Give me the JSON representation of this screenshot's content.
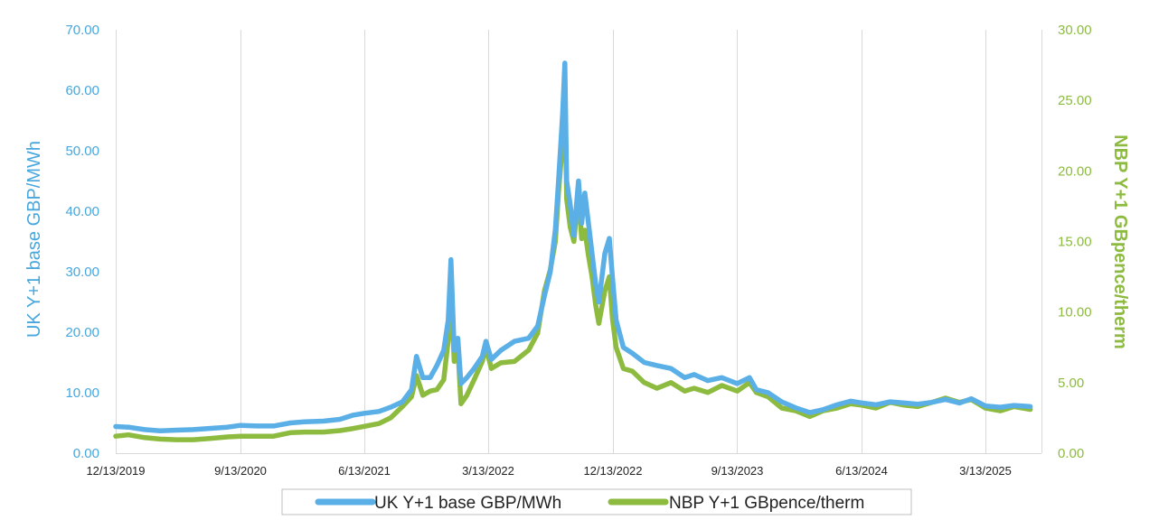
{
  "chart_data": {
    "type": "line",
    "title": "",
    "xlabel": "",
    "x_ticks": [
      "12/13/2019",
      "9/13/2020",
      "6/13/2021",
      "3/13/2022",
      "12/13/2022",
      "9/13/2023",
      "6/13/2024",
      "3/13/2025"
    ],
    "x_range": [
      "2019-12-13",
      "2025-06-20"
    ],
    "y_left": {
      "label": "UK Y+1 base GBP/MWh",
      "range": [
        0,
        70
      ],
      "ticks": [
        "0.00",
        "10.00",
        "20.00",
        "30.00",
        "40.00",
        "50.00",
        "60.00",
        "70.00"
      ]
    },
    "y_right": {
      "label": "NBP Y+1 GBpence/therm",
      "range": [
        0,
        30
      ],
      "ticks": [
        "0.00",
        "5.00",
        "10.00",
        "15.00",
        "20.00",
        "25.00",
        "30.00"
      ]
    },
    "grid": "vertical",
    "legend_position": "bottom",
    "series": [
      {
        "name": "UK Y+1 base GBP/MWh",
        "axis": "left",
        "color": "#5aafe6",
        "points": [
          [
            "2019-12-13",
            4.4
          ],
          [
            "2020-01-10",
            4.3
          ],
          [
            "2020-02-15",
            3.9
          ],
          [
            "2020-03-20",
            3.7
          ],
          [
            "2020-04-25",
            3.8
          ],
          [
            "2020-06-01",
            3.9
          ],
          [
            "2020-07-10",
            4.1
          ],
          [
            "2020-08-15",
            4.3
          ],
          [
            "2020-09-13",
            4.6
          ],
          [
            "2020-10-20",
            4.5
          ],
          [
            "2020-11-25",
            4.5
          ],
          [
            "2021-01-01",
            5.0
          ],
          [
            "2021-02-01",
            5.2
          ],
          [
            "2021-03-15",
            5.3
          ],
          [
            "2021-04-20",
            5.6
          ],
          [
            "2021-05-20",
            6.3
          ],
          [
            "2021-06-13",
            6.6
          ],
          [
            "2021-07-15",
            6.9
          ],
          [
            "2021-08-10",
            7.6
          ],
          [
            "2021-09-05",
            8.5
          ],
          [
            "2021-09-25",
            10.5
          ],
          [
            "2021-10-06",
            16.0
          ],
          [
            "2021-10-20",
            12.5
          ],
          [
            "2021-11-05",
            12.5
          ],
          [
            "2021-11-20",
            14.5
          ],
          [
            "2021-12-05",
            17.0
          ],
          [
            "2021-12-15",
            22.0
          ],
          [
            "2021-12-21",
            32.0
          ],
          [
            "2021-12-28",
            17.0
          ],
          [
            "2022-01-05",
            19.0
          ],
          [
            "2022-01-12",
            11.5
          ],
          [
            "2022-01-25",
            12.5
          ],
          [
            "2022-02-10",
            14.0
          ],
          [
            "2022-02-28",
            16.0
          ],
          [
            "2022-03-08",
            18.5
          ],
          [
            "2022-03-20",
            15.5
          ],
          [
            "2022-04-10",
            17.0
          ],
          [
            "2022-05-10",
            18.5
          ],
          [
            "2022-06-10",
            19.0
          ],
          [
            "2022-06-30",
            21.0
          ],
          [
            "2022-07-15",
            26.0
          ],
          [
            "2022-07-28",
            30.0
          ],
          [
            "2022-08-08",
            37.0
          ],
          [
            "2022-08-15",
            45.0
          ],
          [
            "2022-08-24",
            56.0
          ],
          [
            "2022-08-29",
            64.5
          ],
          [
            "2022-09-02",
            45.0
          ],
          [
            "2022-09-10",
            41.0
          ],
          [
            "2022-09-18",
            36.0
          ],
          [
            "2022-09-28",
            45.0
          ],
          [
            "2022-10-05",
            38.0
          ],
          [
            "2022-10-12",
            43.0
          ],
          [
            "2022-10-20",
            38.0
          ],
          [
            "2022-10-28",
            33.0
          ],
          [
            "2022-11-05",
            28.0
          ],
          [
            "2022-11-12",
            25.0
          ],
          [
            "2022-11-25",
            33.0
          ],
          [
            "2022-12-05",
            35.5
          ],
          [
            "2022-12-12",
            29.0
          ],
          [
            "2022-12-20",
            22.0
          ],
          [
            "2023-01-05",
            17.5
          ],
          [
            "2023-01-25",
            16.5
          ],
          [
            "2023-02-20",
            15.0
          ],
          [
            "2023-03-20",
            14.5
          ],
          [
            "2023-04-20",
            14.0
          ],
          [
            "2023-05-20",
            12.5
          ],
          [
            "2023-06-10",
            13.0
          ],
          [
            "2023-07-10",
            12.0
          ],
          [
            "2023-08-10",
            12.5
          ],
          [
            "2023-09-13",
            11.5
          ],
          [
            "2023-10-10",
            12.5
          ],
          [
            "2023-10-25",
            10.5
          ],
          [
            "2023-11-20",
            10.0
          ],
          [
            "2023-12-20",
            8.5
          ],
          [
            "2024-01-20",
            7.5
          ],
          [
            "2024-02-20",
            6.7
          ],
          [
            "2024-03-20",
            7.2
          ],
          [
            "2024-04-20",
            8.0
          ],
          [
            "2024-05-20",
            8.6
          ],
          [
            "2024-06-13",
            8.3
          ],
          [
            "2024-07-15",
            8.0
          ],
          [
            "2024-08-15",
            8.5
          ],
          [
            "2024-09-15",
            8.3
          ],
          [
            "2024-10-15",
            8.1
          ],
          [
            "2024-11-15",
            8.4
          ],
          [
            "2024-12-15",
            8.9
          ],
          [
            "2025-01-15",
            8.3
          ],
          [
            "2025-02-10",
            9.0
          ],
          [
            "2025-03-13",
            7.8
          ],
          [
            "2025-04-15",
            7.6
          ],
          [
            "2025-05-15",
            7.9
          ],
          [
            "2025-06-20",
            7.7
          ]
        ]
      },
      {
        "name": "NBP Y+1 GBpence/therm",
        "axis": "right",
        "color": "#8dbb3f",
        "points": [
          [
            "2019-12-13",
            1.2
          ],
          [
            "2020-01-10",
            1.3
          ],
          [
            "2020-02-15",
            1.1
          ],
          [
            "2020-03-20",
            1.0
          ],
          [
            "2020-04-25",
            0.95
          ],
          [
            "2020-06-01",
            0.95
          ],
          [
            "2020-07-10",
            1.05
          ],
          [
            "2020-08-15",
            1.15
          ],
          [
            "2020-09-13",
            1.2
          ],
          [
            "2020-10-20",
            1.2
          ],
          [
            "2020-11-25",
            1.2
          ],
          [
            "2021-01-01",
            1.45
          ],
          [
            "2021-02-01",
            1.5
          ],
          [
            "2021-03-15",
            1.5
          ],
          [
            "2021-04-20",
            1.6
          ],
          [
            "2021-05-20",
            1.75
          ],
          [
            "2021-06-13",
            1.9
          ],
          [
            "2021-07-15",
            2.1
          ],
          [
            "2021-08-10",
            2.5
          ],
          [
            "2021-09-05",
            3.3
          ],
          [
            "2021-09-25",
            4.0
          ],
          [
            "2021-10-06",
            5.5
          ],
          [
            "2021-10-20",
            4.1
          ],
          [
            "2021-11-05",
            4.4
          ],
          [
            "2021-11-20",
            4.5
          ],
          [
            "2021-12-05",
            5.2
          ],
          [
            "2021-12-15",
            8.0
          ],
          [
            "2021-12-21",
            11.9
          ],
          [
            "2021-12-28",
            6.5
          ],
          [
            "2022-01-05",
            7.5
          ],
          [
            "2022-01-12",
            3.5
          ],
          [
            "2022-01-25",
            4.1
          ],
          [
            "2022-02-10",
            5.2
          ],
          [
            "2022-02-28",
            6.5
          ],
          [
            "2022-03-08",
            7.5
          ],
          [
            "2022-03-20",
            6.0
          ],
          [
            "2022-04-10",
            6.4
          ],
          [
            "2022-05-10",
            6.5
          ],
          [
            "2022-06-10",
            7.3
          ],
          [
            "2022-06-30",
            8.5
          ],
          [
            "2022-07-15",
            11.5
          ],
          [
            "2022-07-28",
            13.0
          ],
          [
            "2022-08-08",
            15.0
          ],
          [
            "2022-08-15",
            18.5
          ],
          [
            "2022-08-24",
            22.0
          ],
          [
            "2022-08-29",
            26.0
          ],
          [
            "2022-09-02",
            18.0
          ],
          [
            "2022-09-10",
            16.0
          ],
          [
            "2022-09-18",
            15.0
          ],
          [
            "2022-09-28",
            18.5
          ],
          [
            "2022-10-05",
            15.2
          ],
          [
            "2022-10-12",
            15.8
          ],
          [
            "2022-10-20",
            14.0
          ],
          [
            "2022-10-28",
            12.5
          ],
          [
            "2022-11-05",
            10.5
          ],
          [
            "2022-11-12",
            9.2
          ],
          [
            "2022-11-25",
            11.5
          ],
          [
            "2022-12-05",
            12.5
          ],
          [
            "2022-12-12",
            9.5
          ],
          [
            "2022-12-20",
            7.5
          ],
          [
            "2023-01-05",
            6.0
          ],
          [
            "2023-01-25",
            5.8
          ],
          [
            "2023-02-20",
            5.0
          ],
          [
            "2023-03-20",
            4.6
          ],
          [
            "2023-04-20",
            5.0
          ],
          [
            "2023-05-20",
            4.4
          ],
          [
            "2023-06-10",
            4.6
          ],
          [
            "2023-07-10",
            4.3
          ],
          [
            "2023-08-10",
            4.8
          ],
          [
            "2023-09-13",
            4.4
          ],
          [
            "2023-10-10",
            5.0
          ],
          [
            "2023-10-25",
            4.3
          ],
          [
            "2023-11-20",
            4.0
          ],
          [
            "2023-12-20",
            3.2
          ],
          [
            "2024-01-20",
            3.0
          ],
          [
            "2024-02-20",
            2.6
          ],
          [
            "2024-03-20",
            3.0
          ],
          [
            "2024-04-20",
            3.2
          ],
          [
            "2024-05-20",
            3.5
          ],
          [
            "2024-06-13",
            3.4
          ],
          [
            "2024-07-15",
            3.2
          ],
          [
            "2024-08-15",
            3.6
          ],
          [
            "2024-09-15",
            3.4
          ],
          [
            "2024-10-15",
            3.3
          ],
          [
            "2024-11-15",
            3.6
          ],
          [
            "2024-12-15",
            3.9
          ],
          [
            "2025-01-15",
            3.6
          ],
          [
            "2025-02-10",
            3.8
          ],
          [
            "2025-03-13",
            3.2
          ],
          [
            "2025-04-15",
            3.0
          ],
          [
            "2025-05-15",
            3.3
          ],
          [
            "2025-06-20",
            3.1
          ]
        ]
      }
    ]
  }
}
